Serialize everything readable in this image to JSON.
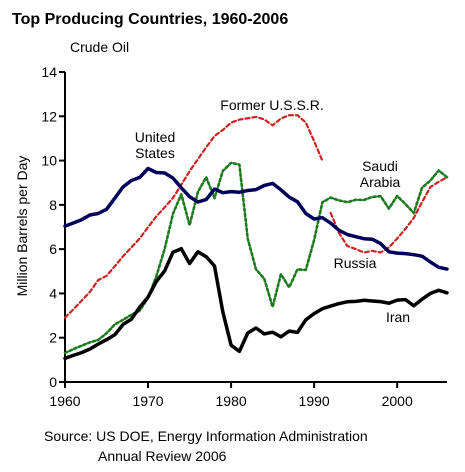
{
  "chart_data": {
    "type": "line",
    "title": "Top Producing Countries, 1960-2006",
    "subtitle": "Crude Oil",
    "xlabel": "",
    "ylabel": "Million Barrels per Day",
    "xlim": [
      1960,
      2006
    ],
    "ylim": [
      0,
      14
    ],
    "xticks": [
      "1960",
      "1970",
      "1980",
      "1990",
      "2000"
    ],
    "yticks": [
      "0",
      "2",
      "4",
      "6",
      "8",
      "10",
      "12",
      "14"
    ],
    "series": [
      {
        "name": "United States",
        "label": [
          "United",
          "States"
        ],
        "color": "#00005a",
        "style": "solid",
        "x": [
          1960,
          1961,
          1962,
          1963,
          1964,
          1965,
          1966,
          1967,
          1968,
          1969,
          1970,
          1971,
          1972,
          1973,
          1974,
          1975,
          1976,
          1977,
          1978,
          1979,
          1980,
          1981,
          1982,
          1983,
          1984,
          1985,
          1986,
          1987,
          1988,
          1989,
          1990,
          1991,
          1992,
          1993,
          1994,
          1995,
          1996,
          1997,
          1998,
          1999,
          2000,
          2001,
          2002,
          2003,
          2004,
          2005,
          2006
        ],
        "values": [
          7.04,
          7.18,
          7.33,
          7.54,
          7.61,
          7.8,
          8.3,
          8.81,
          9.1,
          9.24,
          9.64,
          9.46,
          9.44,
          9.21,
          8.77,
          8.37,
          8.13,
          8.24,
          8.71,
          8.55,
          8.6,
          8.57,
          8.65,
          8.69,
          8.88,
          8.97,
          8.68,
          8.35,
          8.14,
          7.61,
          7.36,
          7.42,
          7.17,
          6.85,
          6.66,
          6.56,
          6.47,
          6.45,
          6.25,
          5.88,
          5.82,
          5.8,
          5.75,
          5.68,
          5.42,
          5.18,
          5.1
        ]
      },
      {
        "name": "Former U.S.S.R.",
        "label": [
          "Former U.S.S.R."
        ],
        "color": "#cc2222",
        "style": "dashed",
        "x": [
          1960,
          1961,
          1962,
          1963,
          1964,
          1965,
          1966,
          1967,
          1968,
          1969,
          1970,
          1971,
          1972,
          1973,
          1974,
          1975,
          1976,
          1977,
          1978,
          1979,
          1980,
          1981,
          1982,
          1983,
          1984,
          1985,
          1986,
          1987,
          1988,
          1989,
          1990,
          1991
        ],
        "values": [
          2.91,
          3.28,
          3.67,
          4.07,
          4.6,
          4.79,
          5.23,
          5.68,
          6.08,
          6.48,
          6.99,
          7.48,
          7.89,
          8.32,
          8.91,
          9.52,
          10.06,
          10.6,
          11.11,
          11.38,
          11.71,
          11.85,
          11.91,
          11.97,
          11.86,
          11.59,
          11.9,
          12.05,
          12.05,
          11.72,
          10.88,
          9.99
        ]
      },
      {
        "name": "Russia",
        "label": [
          "Russia"
        ],
        "color": "#cc2222",
        "style": "dashed",
        "x": [
          1992,
          1993,
          1994,
          1995,
          1996,
          1997,
          1998,
          1999,
          2000,
          2001,
          2002,
          2003,
          2004,
          2005,
          2006
        ],
        "values": [
          7.63,
          6.73,
          6.14,
          6.0,
          5.85,
          5.92,
          5.85,
          6.08,
          6.48,
          6.92,
          7.41,
          8.13,
          8.8,
          9.04,
          9.25
        ]
      },
      {
        "name": "Saudi Arabia",
        "label": [
          "Saudi",
          "Arabia"
        ],
        "color": "#1f7a1f",
        "style": "dotted",
        "x": [
          1960,
          1961,
          1962,
          1963,
          1964,
          1965,
          1966,
          1967,
          1968,
          1969,
          1970,
          1971,
          1972,
          1973,
          1974,
          1975,
          1976,
          1977,
          1978,
          1979,
          1980,
          1981,
          1982,
          1983,
          1984,
          1985,
          1986,
          1987,
          1988,
          1989,
          1990,
          1991,
          1992,
          1993,
          1994,
          1995,
          1996,
          1997,
          1998,
          1999,
          2000,
          2001,
          2002,
          2003,
          2004,
          2005,
          2006
        ],
        "values": [
          1.31,
          1.48,
          1.64,
          1.79,
          1.9,
          2.2,
          2.6,
          2.81,
          3.04,
          3.22,
          3.8,
          4.77,
          6.02,
          7.6,
          8.48,
          7.08,
          8.58,
          9.25,
          8.3,
          9.53,
          9.9,
          9.82,
          6.48,
          5.09,
          4.66,
          3.39,
          4.87,
          4.27,
          5.09,
          5.06,
          6.41,
          8.12,
          8.33,
          8.2,
          8.12,
          8.23,
          8.22,
          8.36,
          8.39,
          7.83,
          8.4,
          8.03,
          7.63,
          8.78,
          9.1,
          9.55,
          9.25
        ]
      },
      {
        "name": "Iran",
        "label": [
          "Iran"
        ],
        "color": "#000000",
        "style": "solid",
        "x": [
          1960,
          1961,
          1962,
          1963,
          1964,
          1965,
          1966,
          1967,
          1968,
          1969,
          1970,
          1971,
          1972,
          1973,
          1974,
          1975,
          1976,
          1977,
          1978,
          1979,
          1980,
          1981,
          1982,
          1983,
          1984,
          1985,
          1986,
          1987,
          1988,
          1989,
          1990,
          1991,
          1992,
          1993,
          1994,
          1995,
          1996,
          1997,
          1998,
          1999,
          2000,
          2001,
          2002,
          2003,
          2004,
          2005,
          2006
        ],
        "values": [
          1.07,
          1.2,
          1.33,
          1.49,
          1.71,
          1.91,
          2.13,
          2.6,
          2.84,
          3.38,
          3.83,
          4.54,
          5.02,
          5.86,
          6.02,
          5.35,
          5.88,
          5.66,
          5.24,
          3.17,
          1.66,
          1.38,
          2.21,
          2.44,
          2.17,
          2.25,
          2.04,
          2.3,
          2.24,
          2.81,
          3.09,
          3.31,
          3.43,
          3.54,
          3.62,
          3.64,
          3.69,
          3.66,
          3.63,
          3.56,
          3.7,
          3.72,
          3.44,
          3.74,
          4.0,
          4.14,
          4.03
        ]
      }
    ]
  },
  "source": {
    "line1": "Source: US DOE, Energy Information Administration",
    "line2": "Annual Review 2006"
  }
}
